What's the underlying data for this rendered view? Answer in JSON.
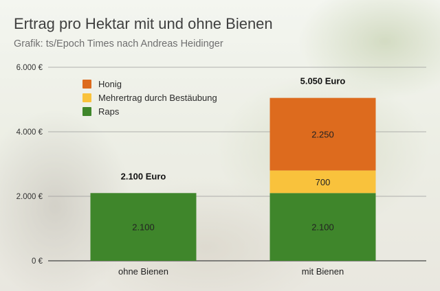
{
  "title": "Ertrag pro Hektar mit und ohne Bienen",
  "subtitle": "Grafik: ts/Epoch Times nach Andreas Heidinger",
  "chart_data": {
    "type": "bar",
    "stacked": true,
    "categories": [
      "ohne Bienen",
      "mit Bienen"
    ],
    "series": [
      {
        "name": "Raps",
        "values": [
          2100,
          2100
        ],
        "color": "#3f862b",
        "labels": [
          "2.100",
          "2.100"
        ]
      },
      {
        "name": "Mehrertrag durch Bestäubung",
        "values": [
          0,
          700
        ],
        "color": "#f9c23c",
        "labels": [
          "",
          "700"
        ]
      },
      {
        "name": "Honig",
        "values": [
          0,
          2250
        ],
        "color": "#dd6b1e",
        "labels": [
          "",
          "2.250"
        ]
      }
    ],
    "totals": [
      "2.100 Euro",
      "5.050 Euro"
    ],
    "ylim": [
      0,
      6000
    ],
    "yticks": [
      {
        "value": 0,
        "label": "0 €"
      },
      {
        "value": 2000,
        "label": "2.000 €"
      },
      {
        "value": 4000,
        "label": "4.000 €"
      },
      {
        "value": 6000,
        "label": "6.000 €"
      }
    ],
    "xlabel": "",
    "ylabel": "",
    "grid": true,
    "legend_position": "top-left",
    "legend_order": [
      "Honig",
      "Mehrertrag durch Bestäubung",
      "Raps"
    ]
  }
}
